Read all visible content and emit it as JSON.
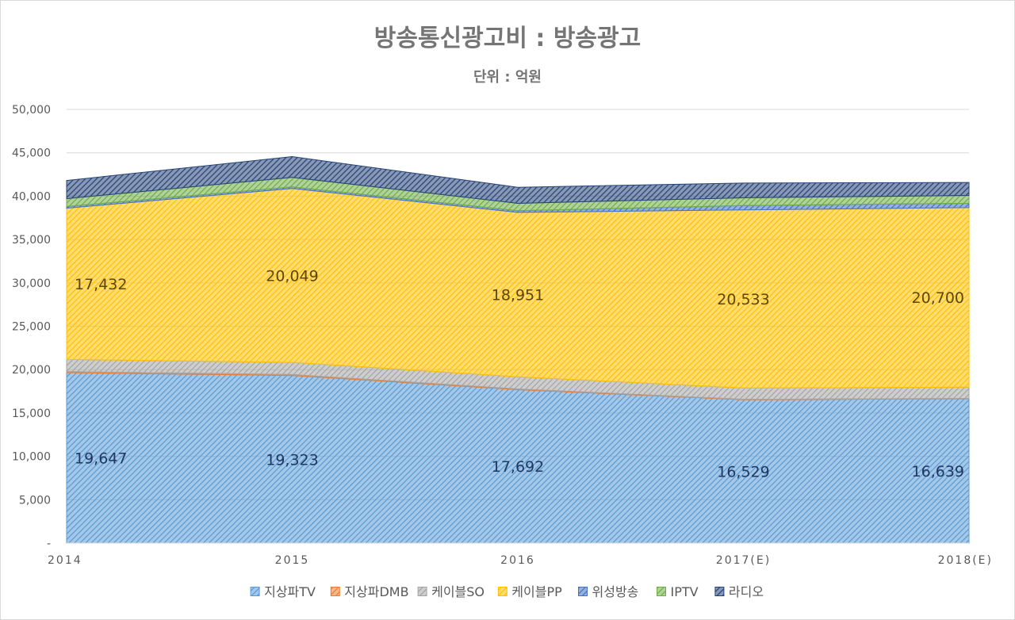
{
  "chart_data": {
    "type": "area",
    "stacked": true,
    "title": "방송통신광고비 : 방송광고",
    "subtitle": "단위 : 억원",
    "categories": [
      "2014",
      "2015",
      "2016",
      "2017(E)",
      "2018(E)"
    ],
    "ylim": [
      0,
      50000
    ],
    "yticks": [
      0,
      5000,
      10000,
      15000,
      20000,
      25000,
      30000,
      35000,
      40000,
      45000,
      50000
    ],
    "ytick_labels": [
      "-",
      "5,000",
      "10,000",
      "15,000",
      "20,000",
      "25,000",
      "30,000",
      "35,000",
      "40,000",
      "45,000",
      "50,000"
    ],
    "grid": true,
    "legend_position": "bottom",
    "series": [
      {
        "name": "지상파TV",
        "values": [
          19647,
          19323,
          17692,
          16529,
          16639
        ],
        "color": "#5B9BD5",
        "labels": [
          "19,647",
          "19,323",
          "17,692",
          "16,529",
          "16,639"
        ],
        "label_color": "#1F3864"
      },
      {
        "name": "지상파DMB",
        "values": [
          130,
          110,
          80,
          50,
          40
        ],
        "color": "#ED7D31",
        "labels": null
      },
      {
        "name": "케이블SO",
        "values": [
          1400,
          1400,
          1400,
          1300,
          1300
        ],
        "color": "#A5A5A5",
        "labels": null
      },
      {
        "name": "케이블PP",
        "values": [
          17432,
          20049,
          18951,
          20533,
          20700
        ],
        "color": "#FFC000",
        "labels": [
          "17,432",
          "20,049",
          "18,951",
          "20,533",
          "20,700"
        ],
        "label_color": "#5C4600"
      },
      {
        "name": "위성방송",
        "values": [
          200,
          180,
          200,
          500,
          500
        ],
        "color": "#4472C4",
        "labels": null
      },
      {
        "name": "IPTV",
        "values": [
          900,
          1100,
          850,
          900,
          900
        ],
        "color": "#70AD47",
        "labels": null
      },
      {
        "name": "라디오",
        "values": [
          2100,
          2400,
          1850,
          1700,
          1500
        ],
        "color": "#264478",
        "labels": null
      }
    ]
  }
}
